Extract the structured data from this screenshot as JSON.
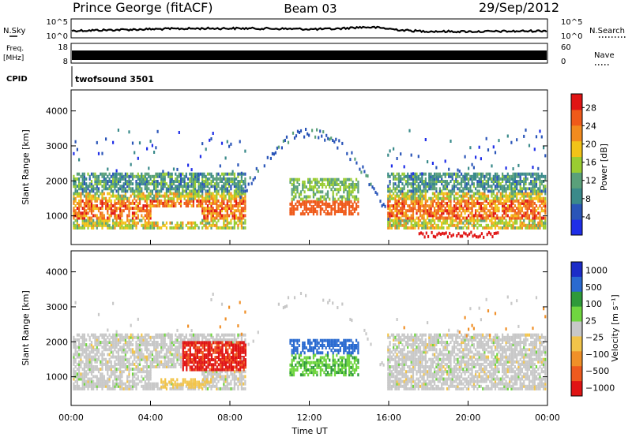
{
  "header": {
    "station": "Prince George (fitACF)",
    "beam": "Beam 03",
    "date": "29/Sep/2012"
  },
  "top_panels": {
    "nsky_label": "N.Sky",
    "nsearch_label": "N.Search",
    "nsky_ticks": [
      "10^5",
      "10^0"
    ],
    "nsearch_ticks": [
      "10^5",
      "10^0"
    ],
    "freq_label_1": "Freq.",
    "freq_label_2": "[MHz]",
    "freq_ticks": [
      "18",
      "8"
    ],
    "nave_label": "Nave",
    "nave_ticks": [
      "60",
      "0"
    ],
    "cpid_label": "CPID",
    "cpid_value": "twofsound 3501"
  },
  "colors": {
    "power": [
      "#1f2ee8",
      "#2a55b8",
      "#3a8a8a",
      "#5aa07a",
      "#9acd32",
      "#f2c318",
      "#f28b1e",
      "#ef5a1a",
      "#e01414"
    ],
    "velocity": [
      "#1c2cc8",
      "#2a6ad0",
      "#2e9a3a",
      "#70d640",
      "#c8c8c8",
      "#f2c44a",
      "#f09028",
      "#ee5a1e",
      "#e01414"
    ]
  },
  "chart_data": [
    {
      "type": "heatmap",
      "name": "power",
      "ylabel": "Slant Range [km]",
      "x_ticks": [
        "00:00",
        "04:00",
        "08:00",
        "12:00",
        "16:00",
        "20:00",
        "00:00"
      ],
      "y_ticks": [
        "1000",
        "2000",
        "3000",
        "4000"
      ],
      "ylim": [
        180,
        4600
      ],
      "xlim_hours": [
        0,
        24
      ],
      "colorbar_label": "Power [dB]",
      "colorbar_ticks": [
        "4",
        "8",
        "12",
        "16",
        "20",
        "24",
        "28"
      ],
      "colorbar_range": [
        0,
        31
      ]
    },
    {
      "type": "heatmap",
      "name": "velocity",
      "ylabel": "Slant Range [km]",
      "x_ticks": [
        "00:00",
        "04:00",
        "08:00",
        "12:00",
        "16:00",
        "20:00",
        "00:00"
      ],
      "y_ticks": [
        "1000",
        "2000",
        "3000",
        "4000"
      ],
      "ylim": [
        180,
        4600
      ],
      "xlim_hours": [
        0,
        24
      ],
      "colorbar_label": "Velocity [m s⁻¹]",
      "colorbar_ticks": [
        "1000",
        "500",
        "100",
        "25",
        "−25",
        "−100",
        "−500",
        "−1000"
      ],
      "xlabel": "Time UT"
    }
  ]
}
